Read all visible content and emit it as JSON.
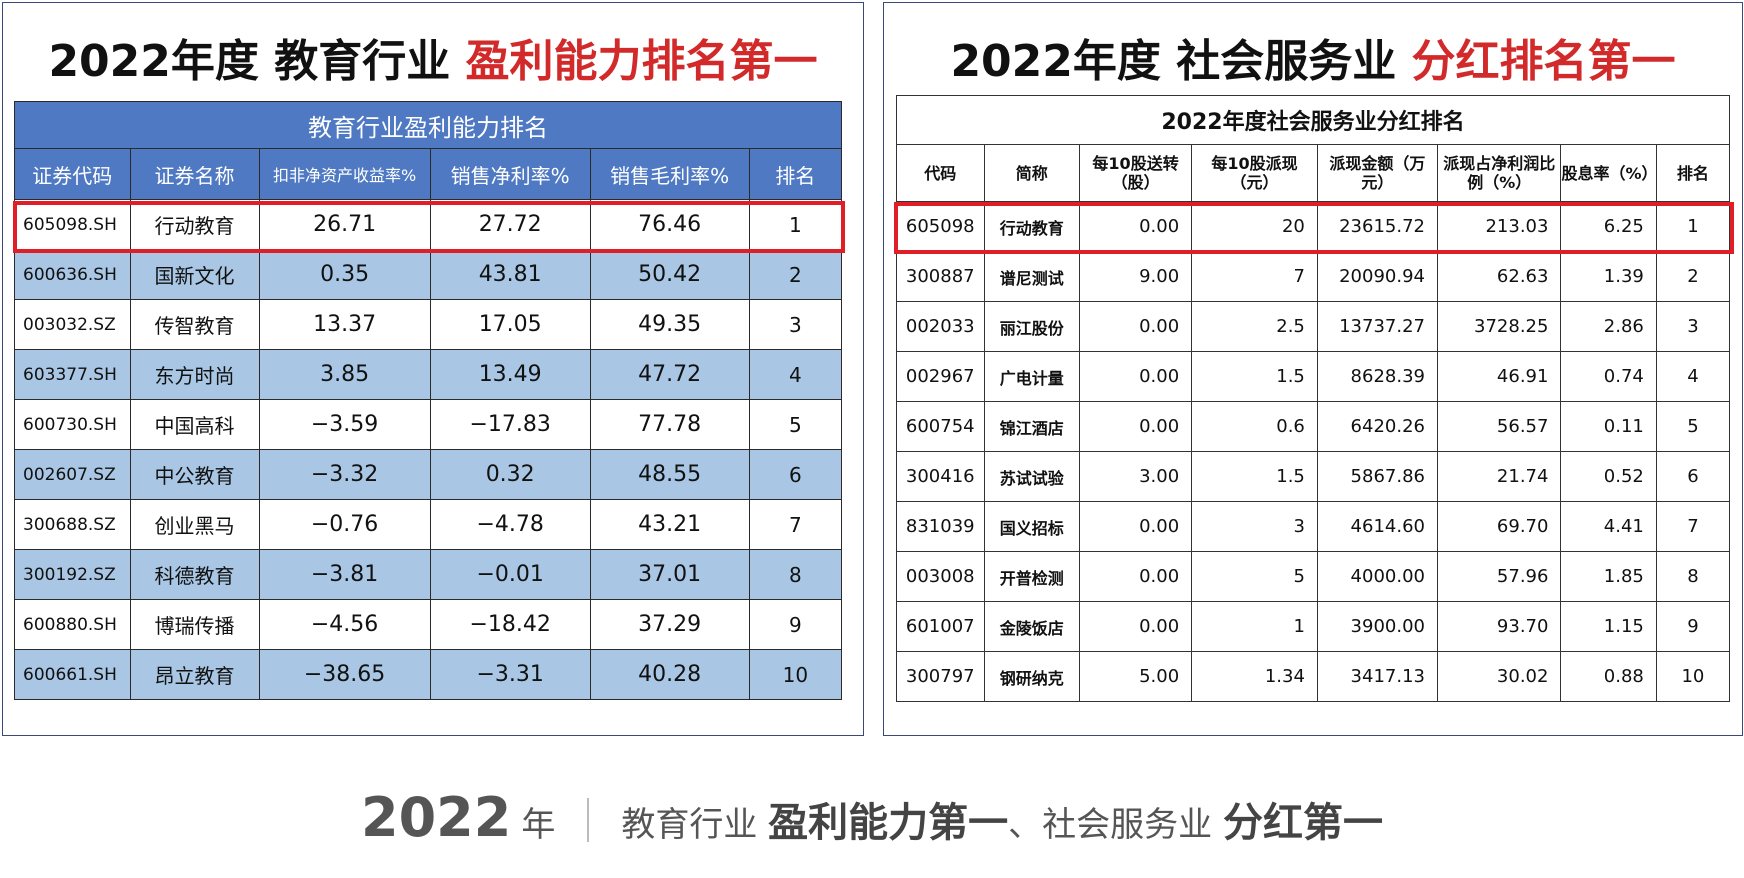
{
  "left_panel": {
    "title_main": "2022年度 教育行业 ",
    "title_highlight": "盈利能力排名第一",
    "table_caption": "教育行业盈利能力排名",
    "headers": [
      "证券代码",
      "证券名称",
      "扣非净资产收益率%",
      "销售净利率%",
      "销售毛利率%",
      "排名"
    ],
    "rows": [
      [
        "605098.SH",
        "行动教育",
        "26.71",
        "27.72",
        "76.46",
        "1"
      ],
      [
        "600636.SH",
        "国新文化",
        "0.35",
        "43.81",
        "50.42",
        "2"
      ],
      [
        "003032.SZ",
        "传智教育",
        "13.37",
        "17.05",
        "49.35",
        "3"
      ],
      [
        "603377.SH",
        "东方时尚",
        "3.85",
        "13.49",
        "47.72",
        "4"
      ],
      [
        "600730.SH",
        "中国高科",
        "−3.59",
        "−17.83",
        "77.78",
        "5"
      ],
      [
        "002607.SZ",
        "中公教育",
        "−3.32",
        "0.32",
        "48.55",
        "6"
      ],
      [
        "300688.SZ",
        "创业黑马",
        "−0.76",
        "−4.78",
        "43.21",
        "7"
      ],
      [
        "300192.SZ",
        "科德教育",
        "−3.81",
        "−0.01",
        "37.01",
        "8"
      ],
      [
        "600880.SH",
        "博瑞传播",
        "−4.56",
        "−18.42",
        "37.29",
        "9"
      ],
      [
        "600661.SH",
        "昂立教育",
        "−38.65",
        "−3.31",
        "40.28",
        "10"
      ]
    ]
  },
  "right_panel": {
    "title_main": "2022年度 社会服务业 ",
    "title_highlight": "分红排名第一",
    "table_caption": "2022年度社会服务业分红排名",
    "headers": [
      "代码",
      "简称",
      "每10股送转（股）",
      "每10股派现（元）",
      "派现金额（万元）",
      "派现占净利润比例（%）",
      "股息率（%）",
      "排名"
    ],
    "rows": [
      [
        "605098",
        "行动教育",
        "0.00",
        "20",
        "23615.72",
        "213.03",
        "6.25",
        "1"
      ],
      [
        "300887",
        "谱尼测试",
        "9.00",
        "7",
        "20090.94",
        "62.63",
        "1.39",
        "2"
      ],
      [
        "002033",
        "丽江股份",
        "0.00",
        "2.5",
        "13737.27",
        "3728.25",
        "2.86",
        "3"
      ],
      [
        "002967",
        "广电计量",
        "0.00",
        "1.5",
        "8628.39",
        "46.91",
        "0.74",
        "4"
      ],
      [
        "600754",
        "锦江酒店",
        "0.00",
        "0.6",
        "6420.26",
        "56.57",
        "0.11",
        "5"
      ],
      [
        "300416",
        "苏试试验",
        "3.00",
        "1.5",
        "5867.86",
        "21.74",
        "0.52",
        "6"
      ],
      [
        "831039",
        "国义招标",
        "0.00",
        "3",
        "4614.60",
        "69.70",
        "4.41",
        "7"
      ],
      [
        "003008",
        "开普检测",
        "0.00",
        "5",
        "4000.00",
        "57.96",
        "1.85",
        "8"
      ],
      [
        "601007",
        "金陵饭店",
        "0.00",
        "1",
        "3900.00",
        "93.70",
        "1.15",
        "9"
      ],
      [
        "300797",
        "钢研纳克",
        "5.00",
        "1.34",
        "3417.13",
        "30.02",
        "0.88",
        "10"
      ]
    ]
  },
  "footer": {
    "year": "2022",
    "year_unit": "年",
    "part1": "教育行业 ",
    "part1_strong": "盈利能力第一",
    "part2": "、社会服务业 ",
    "part2_strong": "分红第一"
  },
  "colors": {
    "highlight_red": "#d22a2a",
    "box_red": "#e01e25",
    "header_blue": "#4f79c2",
    "row_alt_blue": "#a9c7e4"
  }
}
